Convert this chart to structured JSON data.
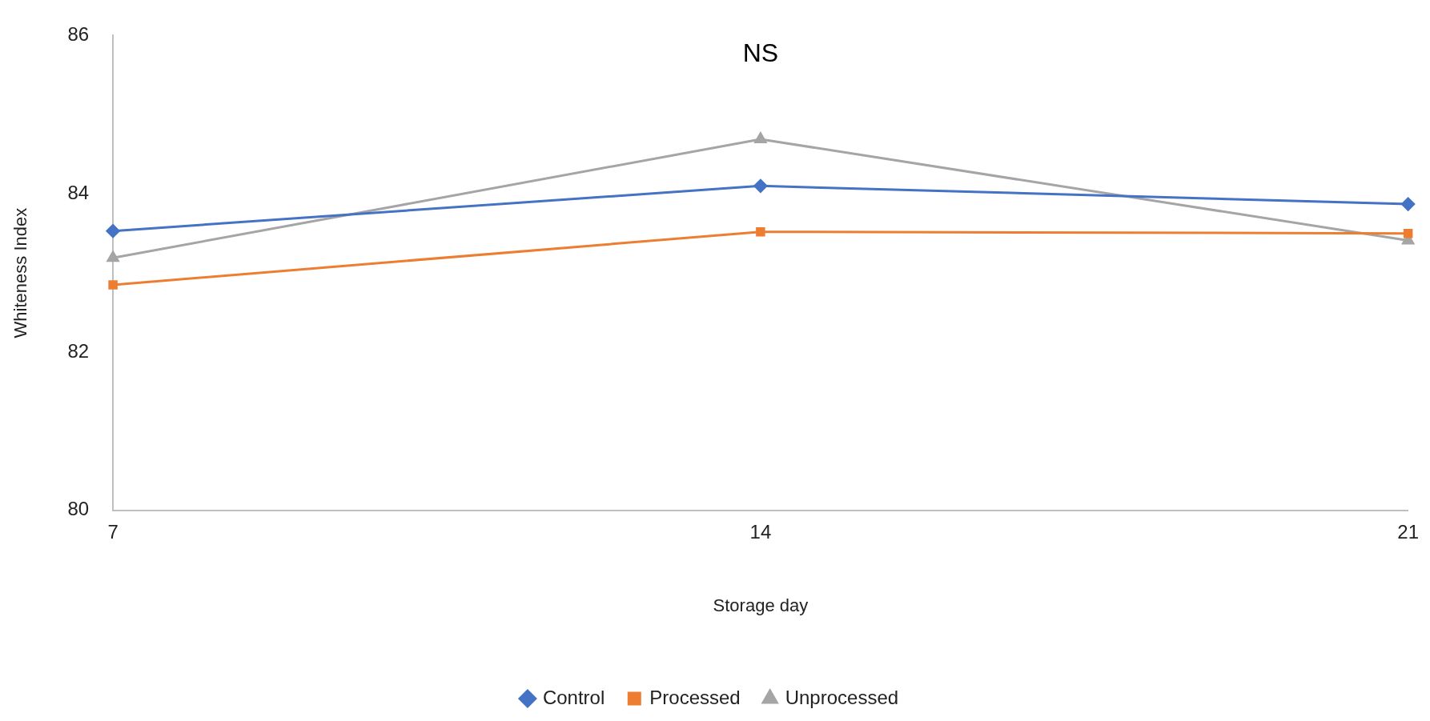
{
  "chart_data": {
    "type": "line",
    "xlabel": "Storage day",
    "ylabel": "Whiteness Index",
    "categories": [
      "7",
      "14",
      "21"
    ],
    "series": [
      {
        "name": "Control",
        "color": "#4472c4",
        "marker": "diamond",
        "values": [
          83.53,
          84.1,
          83.87
        ]
      },
      {
        "name": "Processed",
        "color": "#ed7d31",
        "marker": "square",
        "values": [
          82.85,
          83.52,
          83.5
        ]
      },
      {
        "name": "Unprocessed",
        "color": "#a5a5a5",
        "marker": "triangle",
        "values": [
          83.19,
          84.69,
          83.41
        ]
      }
    ],
    "ylim": [
      80,
      86
    ],
    "yticks": [
      80,
      82,
      84,
      86
    ],
    "grid": false,
    "legend": "bottom",
    "line_style": "solid",
    "annotations": [
      "NS"
    ]
  }
}
